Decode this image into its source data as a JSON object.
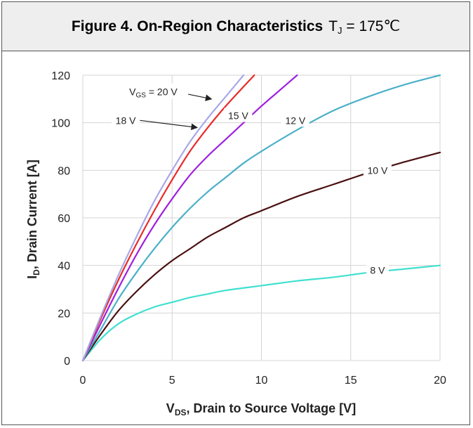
{
  "header": {
    "title_main": "Figure 4. On-Region Characteristics",
    "cond_prefix": "T",
    "cond_sub": "J",
    "cond_suffix": " = 175℃"
  },
  "chart_data": {
    "type": "line",
    "title": "Figure 4. On-Region Characteristics TJ = 175℃",
    "xlabel_main": "V",
    "xlabel_sub": "DS",
    "xlabel_rest": ", Drain to Source Voltage [V]",
    "ylabel_main": "I",
    "ylabel_sub": "D",
    "ylabel_rest": ", Drain Current [A]",
    "xlim": [
      0,
      20
    ],
    "ylim": [
      0,
      120
    ],
    "xticks": [
      0,
      5,
      10,
      15,
      20
    ],
    "yticks": [
      0,
      20,
      40,
      60,
      80,
      100,
      120
    ],
    "grid": true,
    "series": [
      {
        "name": "8 V",
        "color": "#40e0d0",
        "x": [
          0,
          1,
          2,
          3,
          4,
          5,
          6,
          7,
          8,
          10,
          12,
          14,
          16,
          18,
          20
        ],
        "y": [
          0,
          9,
          15.5,
          19.5,
          22.5,
          24.5,
          26.5,
          28,
          29.5,
          31.5,
          33.5,
          35,
          37,
          38.5,
          40
        ]
      },
      {
        "name": "10 V",
        "color": "#4a1010",
        "x": [
          0,
          1,
          2,
          3,
          4,
          5,
          6,
          7,
          8,
          9,
          10,
          12,
          14,
          16,
          18,
          20
        ],
        "y": [
          0,
          11,
          21,
          29,
          36,
          42,
          47,
          52,
          56,
          60,
          63,
          69,
          74,
          79,
          83.5,
          87.5
        ]
      },
      {
        "name": "12 V",
        "color": "#4bb0c8",
        "x": [
          0,
          1,
          2,
          3,
          4,
          5,
          6,
          7,
          8,
          9,
          10,
          12,
          14,
          16,
          18,
          20
        ],
        "y": [
          0,
          13,
          26,
          37,
          47,
          56,
          64,
          71,
          77,
          83,
          88,
          97,
          105,
          111,
          116,
          120
        ]
      },
      {
        "name": "15 V",
        "color": "#a020e0",
        "x": [
          0,
          1,
          2,
          3,
          4,
          5,
          6,
          7,
          8,
          9,
          10,
          11,
          12
        ],
        "y": [
          0,
          15.5,
          30.5,
          44.5,
          57,
          68,
          78,
          86,
          93,
          100,
          107,
          113.5,
          120
        ]
      },
      {
        "name": "18 V",
        "color": "#e82a2a",
        "x": [
          0,
          1,
          2,
          3,
          4,
          5,
          6,
          7,
          8,
          9.6
        ],
        "y": [
          0,
          17.5,
          34,
          49,
          63,
          76,
          88,
          98,
          107,
          120
        ]
      },
      {
        "name": "V_GS = 20 V",
        "color": "#a8a8e8",
        "x": [
          0,
          1,
          2,
          3,
          4,
          5,
          6,
          7,
          8,
          9
        ],
        "y": [
          0,
          18.5,
          36,
          52,
          67,
          80,
          92,
          102,
          111,
          120
        ]
      }
    ],
    "labels": [
      {
        "text": "8 V",
        "x": 16.5,
        "y": 38
      },
      {
        "text": "10 V",
        "x": 16.5,
        "y": 80
      },
      {
        "text": "12 V",
        "x": 11.9,
        "y": 101
      },
      {
        "text": "15 V",
        "x": 8.7,
        "y": 103
      },
      {
        "text": "18 V",
        "x": 2.4,
        "y": 101
      },
      {
        "text_main": "V",
        "text_sub": "GS",
        "text_rest": " = 20 V",
        "x": 2.6,
        "y": 113
      }
    ]
  }
}
